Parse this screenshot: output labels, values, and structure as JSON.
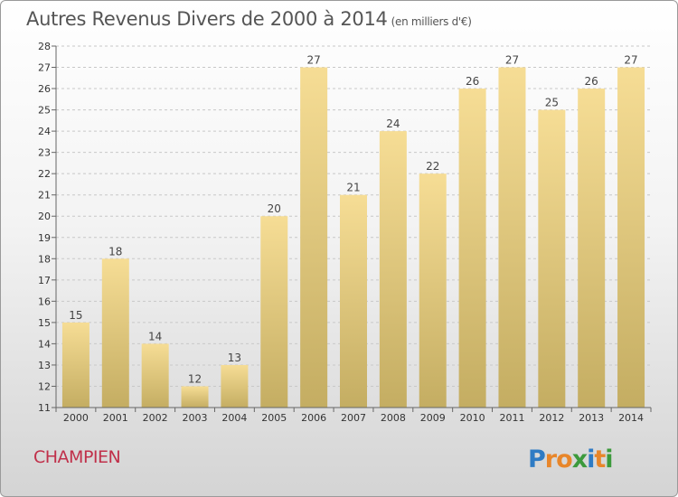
{
  "title": {
    "main": "Autres Revenus Divers de 2000 à 2014",
    "unit": "(en milliers d'€)"
  },
  "commune": "CHAMPIEN",
  "logo": {
    "text": "Proxiti",
    "letters": [
      "P",
      "r",
      "o",
      "x",
      "i",
      "t",
      "i"
    ]
  },
  "colors": {
    "bar_light": "#f6dd95",
    "bar_dark": "#c4ad62",
    "commune": "#c0304a"
  },
  "chart_data": {
    "type": "bar",
    "title": "Autres Revenus Divers de 2000 à 2014",
    "ylabel": "",
    "xlabel": "",
    "categories": [
      "2000",
      "2001",
      "2002",
      "2003",
      "2004",
      "2005",
      "2006",
      "2007",
      "2008",
      "2009",
      "2010",
      "2011",
      "2012",
      "2013",
      "2014"
    ],
    "values": [
      15,
      18,
      14,
      12,
      13,
      20,
      27,
      21,
      24,
      22,
      26,
      27,
      25,
      26,
      27
    ],
    "ylim": [
      11,
      28
    ],
    "yticks": [
      11,
      12,
      13,
      14,
      15,
      16,
      17,
      18,
      19,
      20,
      21,
      22,
      23,
      24,
      25,
      26,
      27,
      28
    ],
    "grid": "horizontal dashed",
    "legend": "none"
  }
}
